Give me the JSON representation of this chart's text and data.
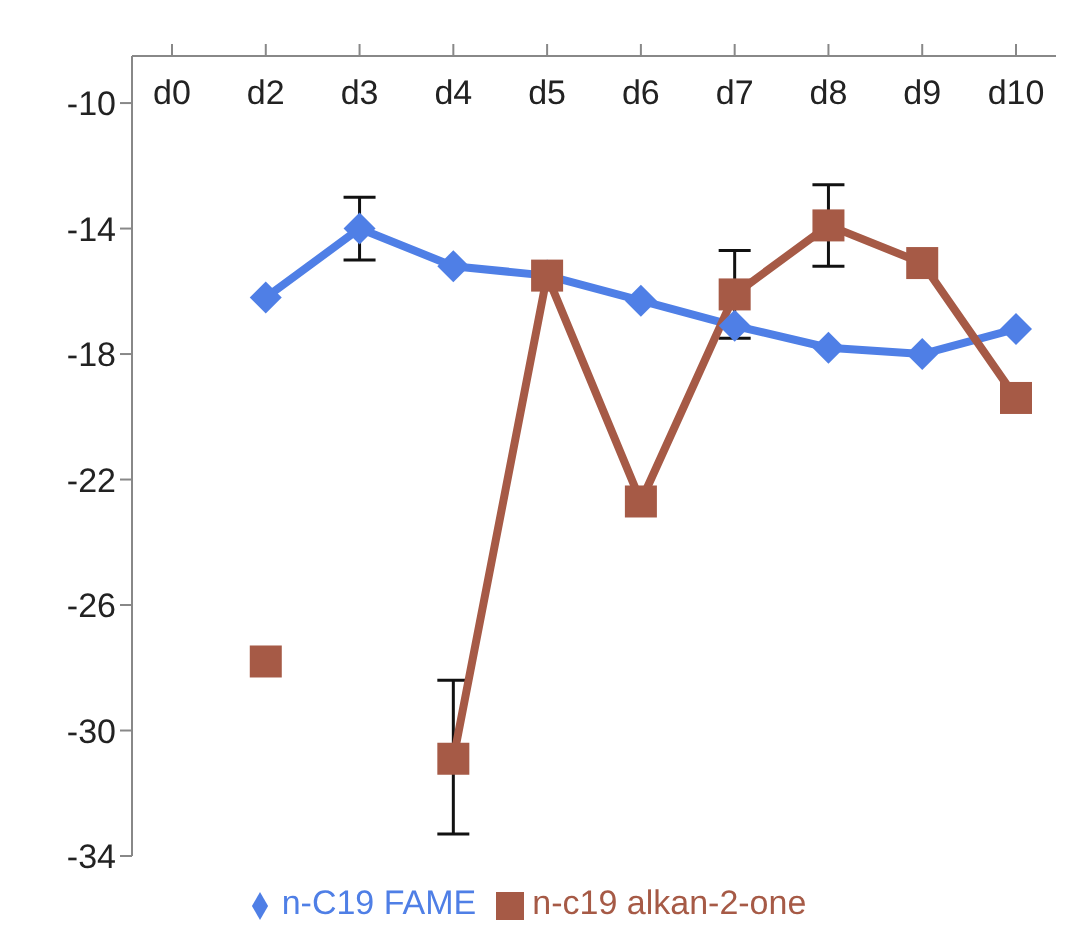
{
  "chart_data": {
    "type": "line",
    "categories": [
      "d0",
      "d2",
      "d3",
      "d4",
      "d5",
      "d6",
      "d7",
      "d8",
      "d9",
      "d10"
    ],
    "series": [
      {
        "name": "n-C19 FAME",
        "color": "#4f7fe6",
        "marker": "diamond",
        "values": [
          null,
          -16.2,
          -14.0,
          -15.2,
          -15.5,
          -16.3,
          -17.1,
          -17.8,
          -18.0,
          -17.2
        ],
        "errors": [
          null,
          null,
          1.0,
          null,
          null,
          null,
          null,
          null,
          null,
          null
        ]
      },
      {
        "name": "n-c19 alkan-2-one",
        "color": "#a65a46",
        "marker": "square",
        "values": [
          null,
          -27.8,
          null,
          -30.9,
          -15.5,
          -22.7,
          -16.1,
          -13.9,
          -15.1,
          -19.4
        ],
        "errors": [
          null,
          null,
          null,
          [
            -33.3,
            -28.4
          ],
          null,
          null,
          1.4,
          [
            -15.2,
            -12.6
          ],
          null,
          null
        ]
      }
    ],
    "ylim": [
      -34,
      -8.5
    ],
    "yticks": [
      -34,
      -30,
      -26,
      -22,
      -18,
      -14,
      -10
    ],
    "legend": "bottom"
  }
}
